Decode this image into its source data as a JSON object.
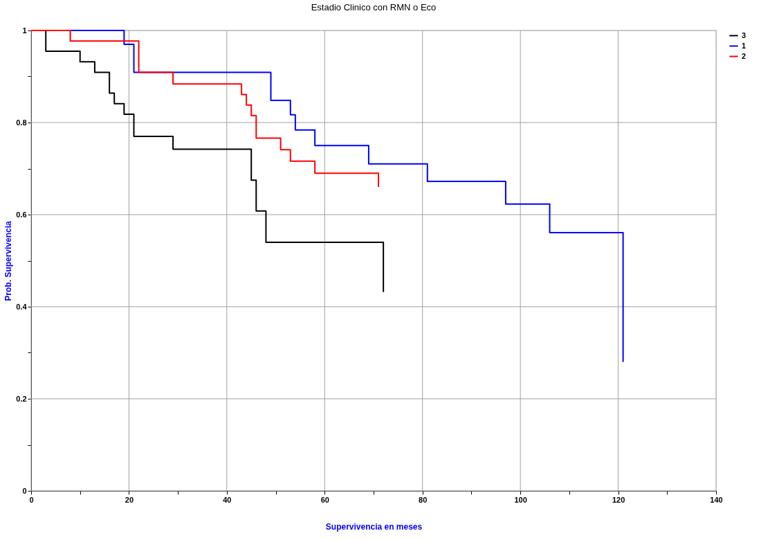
{
  "chart_data": {
    "type": "step",
    "title": "Estadio Clinico con RMN o Eco",
    "xlabel": "Supervivencia en meses",
    "ylabel": "Prob. Supervivencia",
    "xlim": [
      0,
      140
    ],
    "ylim": [
      0,
      1
    ],
    "xticks": [
      0,
      {
        "value": 10,
        "label": null
      },
      20,
      {
        "value": 30,
        "label": null
      },
      40,
      {
        "value": 50,
        "label": null
      },
      60,
      {
        "value": 70,
        "label": null
      },
      80,
      {
        "value": 90,
        "label": null
      },
      100,
      {
        "value": 110,
        "label": null
      },
      120,
      {
        "value": 130,
        "label": null
      },
      140
    ],
    "yticks": [
      0,
      {
        "value": 0.1,
        "label": null
      },
      0.2,
      {
        "value": 0.3,
        "label": null
      },
      0.4,
      {
        "value": 0.5,
        "label": null
      },
      0.6,
      {
        "value": 0.7,
        "label": null
      },
      0.8,
      {
        "value": 0.9,
        "label": null
      },
      1
    ],
    "grid": true,
    "legend": "right",
    "marker": "none",
    "line_style": "solid",
    "series": [
      {
        "name": "3",
        "color": "#000000",
        "x": [
          0,
          3,
          10,
          13,
          16,
          17,
          19,
          21,
          29,
          45,
          46,
          48,
          72,
          72
        ],
        "values": [
          1,
          0.955,
          0.932,
          0.909,
          0.864,
          0.841,
          0.818,
          0.77,
          0.742,
          0.675,
          0.608,
          0.54,
          0.54,
          0.432
        ]
      },
      {
        "name": "1",
        "color": "#0000ff",
        "x": [
          0,
          19,
          21,
          49,
          53,
          54,
          58,
          69,
          81,
          97,
          106,
          121,
          121
        ],
        "values": [
          1,
          0.97,
          0.909,
          0.848,
          0.817,
          0.784,
          0.75,
          0.71,
          0.672,
          0.623,
          0.561,
          0.561,
          0.28
        ]
      },
      {
        "name": "2",
        "color": "#ff0000",
        "x": [
          0,
          8,
          22,
          29,
          43,
          44,
          45,
          46,
          51,
          53,
          58,
          71,
          71
        ],
        "values": [
          1,
          0.977,
          0.909,
          0.884,
          0.861,
          0.838,
          0.815,
          0.766,
          0.741,
          0.716,
          0.69,
          0.69,
          0.66
        ]
      }
    ]
  }
}
